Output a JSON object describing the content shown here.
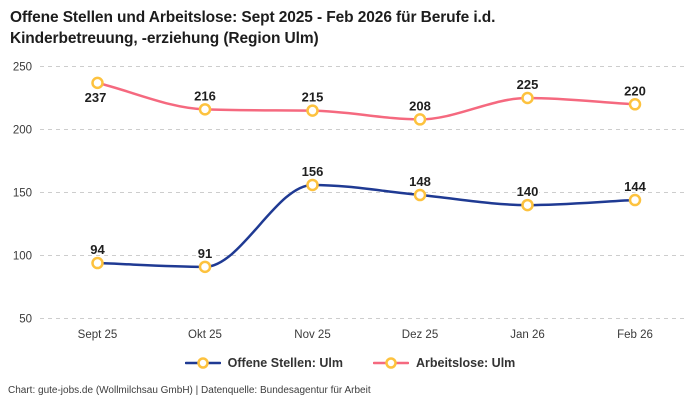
{
  "title": {
    "line1": "Offene Stellen und Arbeitslose: Sept 2025 - Feb 2026 für Berufe i.d.",
    "line2": "Kinderbetreuung, -erziehung (Region Ulm)"
  },
  "footer": {
    "text": "Chart: gute-jobs.de (Wollmilchsau GmbH) | Datenquelle: Bundesagentur für Arbeit"
  },
  "colors": {
    "offene_stellen_line": "#1f3a93",
    "arbeitslose_line": "#f5697f",
    "marker_ring": "#fdc23e",
    "marker_fill": "#ffffff",
    "gridline": "#cdcdcd",
    "data_label": "#1f1f1f",
    "axis_text": "#3a3a3a"
  },
  "chart_data": {
    "type": "line",
    "title": "Offene Stellen und Arbeitslose: Sept 2025 - Feb 2026 für Berufe i.d. Kinderbetreuung, -erziehung (Region Ulm)",
    "categories": [
      "Sept 25",
      "Okt 25",
      "Nov 25",
      "Dez 25",
      "Jan 26",
      "Feb 26"
    ],
    "series": [
      {
        "name": "Offene Stellen: Ulm",
        "values": [
          94,
          91,
          156,
          148,
          140,
          144
        ],
        "color_key": "offene_stellen_line",
        "label_below_points": []
      },
      {
        "name": "Arbeitslose: Ulm",
        "values": [
          237,
          216,
          215,
          208,
          225,
          220
        ],
        "color_key": "arbeitslose_line",
        "label_below_points": [
          0
        ]
      }
    ],
    "xlabel": "",
    "ylabel": "",
    "ylim": [
      50,
      250
    ],
    "yticks": [
      50,
      100,
      150,
      200,
      250
    ],
    "grid": "horizontal-dashed",
    "legend_position": "bottom",
    "marker": "yellow-ring",
    "curve": "monotone",
    "data_labels": true
  }
}
